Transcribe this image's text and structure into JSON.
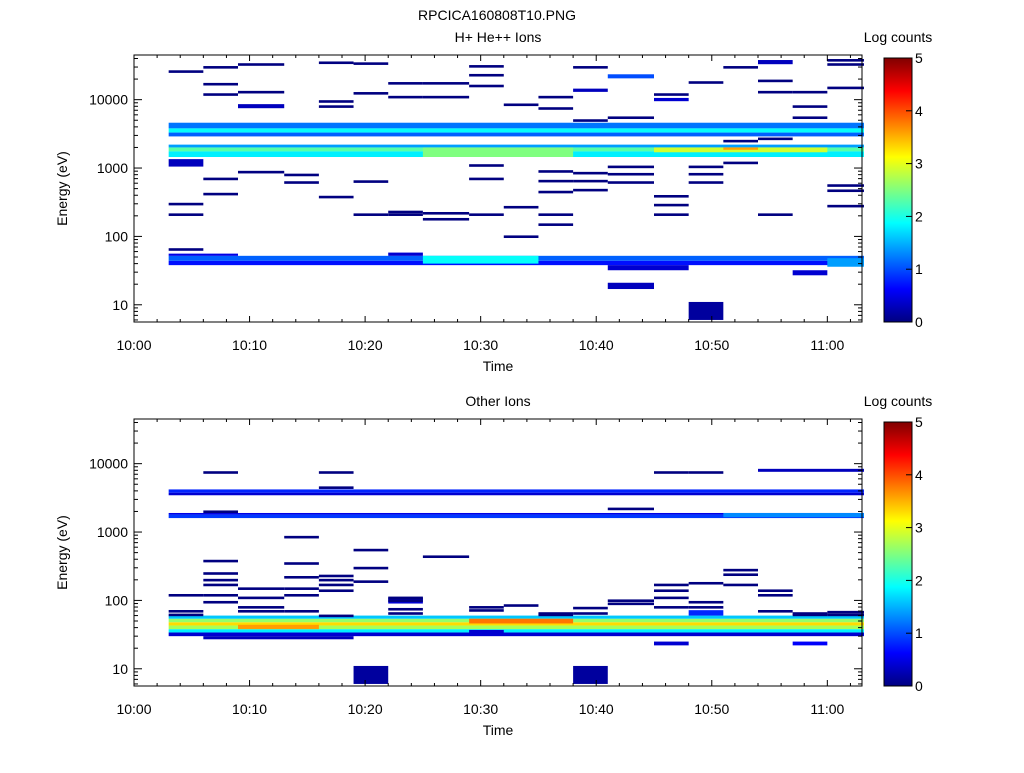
{
  "title": "RPCICA160808T10.PNG",
  "chart_data": [
    {
      "type": "heatmap",
      "title": "H+ He++ Ions",
      "xlabel": "Time",
      "ylabel": "Energy (eV)",
      "x_ticks": [
        "10:00",
        "10:10",
        "10:20",
        "10:30",
        "10:40",
        "10:50",
        "11:00"
      ],
      "x_range": [
        "10:00",
        "11:03"
      ],
      "y_ticks": [
        10,
        100,
        1000,
        10000
      ],
      "y_ticks_labels": [
        "10",
        "100",
        "1000",
        "10000"
      ],
      "y_range": [
        5.6,
        45000
      ],
      "y_scale": "log",
      "colorbar": {
        "label": "Log counts",
        "range": [
          0,
          5
        ],
        "ticks": [
          "0",
          "1",
          "2",
          "3",
          "4",
          "5"
        ]
      },
      "time_bins": [
        "10:03",
        "10:06",
        "10:09",
        "10:13",
        "10:16",
        "10:19",
        "10:22",
        "10:25",
        "10:29",
        "10:32",
        "10:35",
        "10:38",
        "10:41",
        "10:45",
        "10:48",
        "10:51",
        "10:54",
        "10:57",
        "11:00"
      ],
      "cells": [
        {
          "tr": [
            0,
            19
          ],
          "e": [
            3800,
            4600
          ],
          "v": 1.2
        },
        {
          "tr": [
            0,
            19
          ],
          "e": [
            3300,
            3800
          ],
          "v": 1.9
        },
        {
          "tr": [
            0,
            19
          ],
          "e": [
            2900,
            3300
          ],
          "v": 1.1
        },
        {
          "tr": [
            0,
            19
          ],
          "e": [
            2000,
            2200
          ],
          "v": 1.4
        },
        {
          "tr": [
            0,
            19
          ],
          "e": [
            1750,
            2000
          ],
          "v": 2.3
        },
        {
          "tr": [
            0,
            19
          ],
          "e": [
            1450,
            1750
          ],
          "v": 1.8
        },
        {
          "tr": [
            7,
            11
          ],
          "e": [
            1450,
            2000
          ],
          "v": 2.5
        },
        {
          "tr": [
            13,
            18
          ],
          "e": [
            1700,
            2000
          ],
          "v": 2.9
        },
        {
          "tr": [
            15,
            16
          ],
          "e": [
            1850,
            2000
          ],
          "v": 3.6
        },
        {
          "tr": [
            0,
            1
          ],
          "e": [
            1050,
            1350
          ],
          "v": 0.3
        },
        {
          "tr": [
            0,
            19
          ],
          "e": [
            38,
            44
          ],
          "v": 0.7
        },
        {
          "tr": [
            0,
            19
          ],
          "e": [
            44,
            52
          ],
          "v": 1.1
        },
        {
          "tr": [
            7,
            10
          ],
          "e": [
            40,
            52
          ],
          "v": 1.9
        },
        {
          "tr": [
            0,
            2
          ],
          "e": [
            52,
            56
          ],
          "v": 0.5
        },
        {
          "tr": [
            6,
            7
          ],
          "e": [
            52,
            58
          ],
          "v": 0.4
        },
        {
          "tr": [
            12,
            14
          ],
          "e": [
            32,
            38
          ],
          "v": 0.4
        },
        {
          "tr": [
            17,
            18
          ],
          "e": [
            27,
            32
          ],
          "v": 0.4
        },
        {
          "tr": [
            18,
            19
          ],
          "e": [
            36,
            48
          ],
          "v": 1.4
        },
        {
          "tr": [
            12,
            13
          ],
          "e": [
            17,
            21
          ],
          "v": 0.3
        },
        {
          "tr": [
            14,
            15
          ],
          "e": [
            6,
            11
          ],
          "v": 0.15
        },
        {
          "tr": [
            2,
            3
          ],
          "e": [
            7500,
            8600
          ],
          "v": 0.3
        },
        {
          "tr": [
            12,
            13
          ],
          "e": [
            20500,
            23500
          ],
          "v": 1.0
        },
        {
          "tr": [
            13,
            14
          ],
          "e": [
            9500,
            10600
          ],
          "v": 0.4
        },
        {
          "tr": [
            16,
            17
          ],
          "e": [
            33000,
            38000
          ],
          "v": 0.3
        },
        {
          "tr": [
            11,
            12
          ],
          "e": [
            13000,
            14500
          ],
          "v": 0.3
        }
      ],
      "lines": [
        {
          "t": [
            0,
            1
          ],
          "e": [
            26000,
            300,
            210,
            65
          ]
        },
        {
          "t": [
            1,
            2
          ],
          "e": [
            30000,
            17000,
            12000,
            700,
            420
          ]
        },
        {
          "t": [
            2,
            3
          ],
          "e": [
            33000,
            13000,
            880
          ]
        },
        {
          "t": [
            3,
            4
          ],
          "e": [
            800,
            620
          ]
        },
        {
          "t": [
            4,
            5
          ],
          "e": [
            35000,
            9500,
            8000,
            380
          ]
        },
        {
          "t": [
            5,
            6
          ],
          "e": [
            34000,
            12500,
            640,
            210
          ]
        },
        {
          "t": [
            6,
            7
          ],
          "e": [
            17500,
            11000,
            230,
            210
          ]
        },
        {
          "t": [
            7,
            8
          ],
          "e": [
            17500,
            11000,
            220,
            180
          ]
        },
        {
          "t": [
            8,
            9
          ],
          "e": [
            31000,
            23000,
            16000,
            1100,
            700,
            210
          ]
        },
        {
          "t": [
            9,
            10
          ],
          "e": [
            8500,
            270,
            100
          ]
        },
        {
          "t": [
            10,
            11
          ],
          "e": [
            11000,
            7500,
            900,
            650,
            450,
            210,
            150
          ]
        },
        {
          "t": [
            11,
            12
          ],
          "e": [
            30000,
            5000,
            850,
            650,
            480
          ]
        },
        {
          "t": [
            12,
            13
          ],
          "e": [
            5500,
            1050,
            820,
            620
          ]
        },
        {
          "t": [
            13,
            14
          ],
          "e": [
            12000,
            390,
            290,
            210
          ]
        },
        {
          "t": [
            14,
            15
          ],
          "e": [
            18000,
            1050,
            820,
            620
          ]
        },
        {
          "t": [
            15,
            16
          ],
          "e": [
            30000,
            2500,
            1200
          ]
        },
        {
          "t": [
            16,
            17
          ],
          "e": [
            19000,
            13000,
            2700,
            210
          ]
        },
        {
          "t": [
            17,
            18
          ],
          "e": [
            13000,
            8000,
            5500
          ]
        },
        {
          "t": [
            18,
            19
          ],
          "e": [
            38000,
            33000,
            15000,
            560,
            470,
            280
          ]
        }
      ]
    },
    {
      "type": "heatmap",
      "title": "Other Ions",
      "xlabel": "Time",
      "ylabel": "Energy (eV)",
      "x_ticks": [
        "10:00",
        "10:10",
        "10:20",
        "10:30",
        "10:40",
        "10:50",
        "11:00"
      ],
      "x_range": [
        "10:00",
        "11:03"
      ],
      "y_ticks": [
        10,
        100,
        1000,
        10000
      ],
      "y_ticks_labels": [
        "10",
        "100",
        "1000",
        "10000"
      ],
      "y_range": [
        5.6,
        45000
      ],
      "y_scale": "log",
      "colorbar": {
        "label": "Log counts",
        "range": [
          0,
          5
        ],
        "ticks": [
          "0",
          "1",
          "2",
          "3",
          "4",
          "5"
        ]
      },
      "time_bins": [
        "10:03",
        "10:06",
        "10:09",
        "10:13",
        "10:16",
        "10:19",
        "10:22",
        "10:25",
        "10:29",
        "10:32",
        "10:35",
        "10:38",
        "10:41",
        "10:45",
        "10:48",
        "10:51",
        "10:54",
        "10:57",
        "11:00"
      ],
      "cells": [
        {
          "tr": [
            0,
            19
          ],
          "e": [
            3750,
            4200
          ],
          "v": 0.8
        },
        {
          "tr": [
            0,
            19
          ],
          "e": [
            3450,
            3750
          ],
          "v": 0.4
        },
        {
          "tr": [
            0,
            19
          ],
          "e": [
            1800,
            1900
          ],
          "v": 0.5
        },
        {
          "tr": [
            0,
            19
          ],
          "e": [
            1600,
            1800
          ],
          "v": 0.9
        },
        {
          "tr": [
            15,
            19
          ],
          "e": [
            1650,
            1900
          ],
          "v": 1.3
        },
        {
          "tr": [
            0,
            19
          ],
          "e": [
            30,
            34
          ],
          "v": 0.4
        },
        {
          "tr": [
            0,
            19
          ],
          "e": [
            34,
            38
          ],
          "v": 1.8
        },
        {
          "tr": [
            0,
            19
          ],
          "e": [
            38,
            43
          ],
          "v": 2.7
        },
        {
          "tr": [
            0,
            19
          ],
          "e": [
            43,
            48
          ],
          "v": 3.3
        },
        {
          "tr": [
            0,
            19
          ],
          "e": [
            48,
            54
          ],
          "v": 2.6
        },
        {
          "tr": [
            0,
            19
          ],
          "e": [
            54,
            60
          ],
          "v": 1.6
        },
        {
          "tr": [
            8,
            11
          ],
          "e": [
            46,
            54
          ],
          "v": 3.8
        },
        {
          "tr": [
            2,
            4
          ],
          "e": [
            38,
            44
          ],
          "v": 3.6
        },
        {
          "tr": [
            1,
            5
          ],
          "e": [
            27,
            30
          ],
          "v": 0.3
        },
        {
          "tr": [
            8,
            9
          ],
          "e": [
            32,
            37
          ],
          "v": 0.4
        },
        {
          "tr": [
            13,
            14
          ],
          "e": [
            22,
            25
          ],
          "v": 0.4
        },
        {
          "tr": [
            17,
            18
          ],
          "e": [
            22,
            25
          ],
          "v": 0.6
        },
        {
          "tr": [
            14,
            15
          ],
          "e": [
            60,
            72
          ],
          "v": 0.8
        },
        {
          "tr": [
            6,
            7
          ],
          "e": [
            90,
            110
          ],
          "v": 0.4
        },
        {
          "tr": [
            16,
            19
          ],
          "e": [
            7600,
            8400
          ],
          "v": 0.3
        },
        {
          "tr": [
            5,
            6
          ],
          "e": [
            6,
            11
          ],
          "v": 0.15
        },
        {
          "tr": [
            11,
            12
          ],
          "e": [
            6,
            11
          ],
          "v": 0.15
        }
      ],
      "lines": [
        {
          "t": [
            0,
            1
          ],
          "e": [
            120,
            70,
            62
          ]
        },
        {
          "t": [
            1,
            2
          ],
          "e": [
            7500,
            2000,
            380,
            250,
            200,
            170,
            120,
            95
          ]
        },
        {
          "t": [
            2,
            3
          ],
          "e": [
            150,
            110,
            80,
            70
          ]
        },
        {
          "t": [
            3,
            4
          ],
          "e": [
            850,
            350,
            220,
            150,
            120,
            70
          ]
        },
        {
          "t": [
            4,
            5
          ],
          "e": [
            7500,
            4500,
            230,
            200,
            170,
            140,
            60
          ]
        },
        {
          "t": [
            5,
            6
          ],
          "e": [
            550,
            300,
            190
          ]
        },
        {
          "t": [
            6,
            7
          ],
          "e": [
            110,
            100,
            75,
            65
          ]
        },
        {
          "t": [
            7,
            8
          ],
          "e": [
            440
          ]
        },
        {
          "t": [
            8,
            9
          ],
          "e": [
            80,
            72
          ]
        },
        {
          "t": [
            9,
            10
          ],
          "e": [
            85
          ]
        },
        {
          "t": [
            10,
            11
          ],
          "e": [
            65,
            62
          ]
        },
        {
          "t": [
            11,
            12
          ],
          "e": [
            78,
            65
          ]
        },
        {
          "t": [
            12,
            13
          ],
          "e": [
            2200,
            100,
            90
          ]
        },
        {
          "t": [
            13,
            14
          ],
          "e": [
            7500,
            170,
            140,
            110,
            80
          ]
        },
        {
          "t": [
            14,
            15
          ],
          "e": [
            7500,
            180,
            95,
            80
          ]
        },
        {
          "t": [
            15,
            16
          ],
          "e": [
            280,
            240,
            170
          ]
        },
        {
          "t": [
            16,
            17
          ],
          "e": [
            140,
            120,
            70
          ]
        },
        {
          "t": [
            17,
            18
          ],
          "e": [
            65,
            62
          ]
        },
        {
          "t": [
            18,
            19
          ],
          "e": [
            68,
            62
          ]
        }
      ]
    }
  ]
}
